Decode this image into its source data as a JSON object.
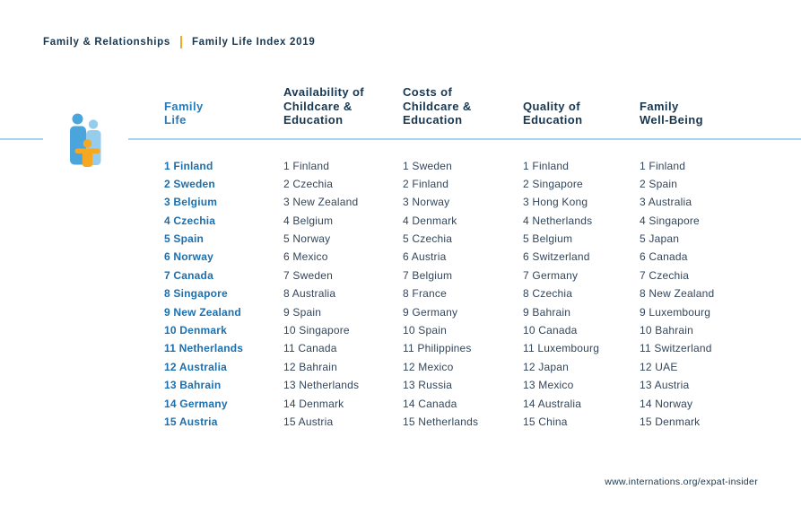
{
  "breadcrumb": {
    "section": "Family & Relationships",
    "title": "Family Life Index 2019"
  },
  "chart_data": {
    "type": "table",
    "title": "Family Life Index 2019",
    "section": "Family & Relationships",
    "columns": [
      {
        "header": "Family\nLife",
        "entries": [
          [
            1,
            "Finland"
          ],
          [
            2,
            "Sweden"
          ],
          [
            3,
            "Belgium"
          ],
          [
            4,
            "Czechia"
          ],
          [
            5,
            "Spain"
          ],
          [
            6,
            "Norway"
          ],
          [
            7,
            "Canada"
          ],
          [
            8,
            "Singapore"
          ],
          [
            9,
            "New Zealand"
          ],
          [
            10,
            "Denmark"
          ],
          [
            11,
            "Netherlands"
          ],
          [
            12,
            "Australia"
          ],
          [
            13,
            "Bahrain"
          ],
          [
            14,
            "Germany"
          ],
          [
            15,
            "Austria"
          ]
        ]
      },
      {
        "header": "Availability of\nChildcare &\nEducation",
        "entries": [
          [
            1,
            "Finland"
          ],
          [
            2,
            "Czechia"
          ],
          [
            3,
            "New Zealand"
          ],
          [
            4,
            "Belgium"
          ],
          [
            5,
            "Norway"
          ],
          [
            6,
            "Mexico"
          ],
          [
            7,
            "Sweden"
          ],
          [
            8,
            "Australia"
          ],
          [
            9,
            "Spain"
          ],
          [
            10,
            "Singapore"
          ],
          [
            11,
            "Canada"
          ],
          [
            12,
            "Bahrain"
          ],
          [
            13,
            "Netherlands"
          ],
          [
            14,
            "Denmark"
          ],
          [
            15,
            "Austria"
          ]
        ]
      },
      {
        "header": "Costs of\nChildcare &\nEducation",
        "entries": [
          [
            1,
            "Sweden"
          ],
          [
            2,
            "Finland"
          ],
          [
            3,
            "Norway"
          ],
          [
            4,
            "Denmark"
          ],
          [
            5,
            "Czechia"
          ],
          [
            6,
            "Austria"
          ],
          [
            7,
            "Belgium"
          ],
          [
            8,
            "France"
          ],
          [
            9,
            "Germany"
          ],
          [
            10,
            "Spain"
          ],
          [
            11,
            "Philippines"
          ],
          [
            12,
            "Mexico"
          ],
          [
            13,
            "Russia"
          ],
          [
            14,
            "Canada"
          ],
          [
            15,
            "Netherlands"
          ]
        ]
      },
      {
        "header": "Quality of\nEducation",
        "entries": [
          [
            1,
            "Finland"
          ],
          [
            2,
            "Singapore"
          ],
          [
            3,
            "Hong Kong"
          ],
          [
            4,
            "Netherlands"
          ],
          [
            5,
            "Belgium"
          ],
          [
            6,
            "Switzerland"
          ],
          [
            7,
            "Germany"
          ],
          [
            8,
            "Czechia"
          ],
          [
            9,
            "Bahrain"
          ],
          [
            10,
            "Canada"
          ],
          [
            11,
            "Luxembourg"
          ],
          [
            12,
            "Japan"
          ],
          [
            13,
            "Mexico"
          ],
          [
            14,
            "Australia"
          ],
          [
            15,
            "China"
          ]
        ]
      },
      {
        "header": "Family\nWell-Being",
        "entries": [
          [
            1,
            "Finland"
          ],
          [
            2,
            "Spain"
          ],
          [
            3,
            "Australia"
          ],
          [
            4,
            "Singapore"
          ],
          [
            5,
            "Japan"
          ],
          [
            6,
            "Canada"
          ],
          [
            7,
            "Czechia"
          ],
          [
            8,
            "New Zealand"
          ],
          [
            9,
            "Luxembourg"
          ],
          [
            10,
            "Bahrain"
          ],
          [
            11,
            "Switzerland"
          ],
          [
            12,
            "UAE"
          ],
          [
            13,
            "Austria"
          ],
          [
            14,
            "Norway"
          ],
          [
            15,
            "Denmark"
          ]
        ]
      }
    ]
  },
  "footer": {
    "url": "www.internations.org/expat-insider"
  },
  "colors": {
    "navy": "#17364f",
    "row_text": "#33465a",
    "rank_blue": "#1d6fad",
    "header_blue": "#2a7ab5",
    "orange": "#f7a823",
    "divider": "#aad4ee",
    "icon_blue_1": "#4aa5dc",
    "icon_blue_2": "#97cdec",
    "icon_orange": "#f7a823"
  },
  "icon": {
    "name": "family-icon"
  }
}
